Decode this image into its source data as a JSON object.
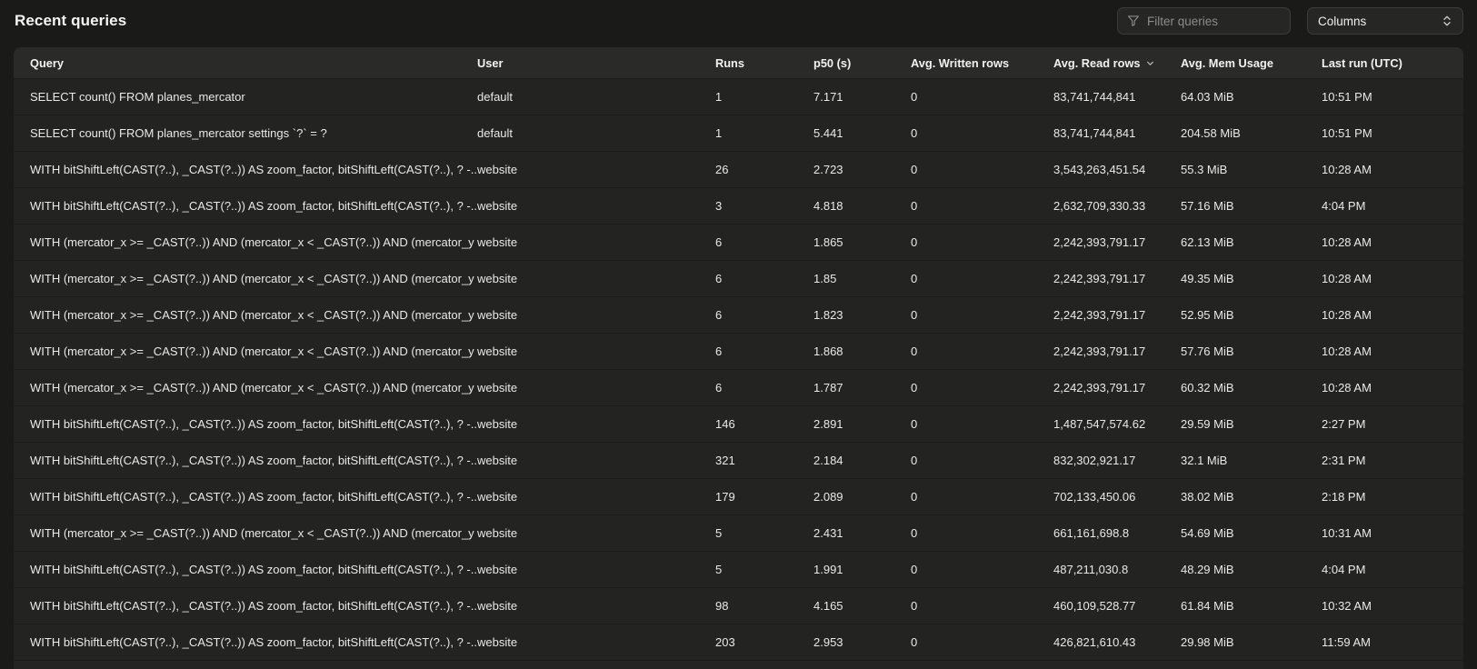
{
  "page": {
    "title": "Recent queries"
  },
  "toolbar": {
    "filter_placeholder": "Filter queries",
    "columns_label": "Columns",
    "filter_icon": "funnel-icon",
    "columns_icon": "up-down-chevrons-icon"
  },
  "colors": {
    "page_bg": "#1a1a18",
    "table_bg": "#232321",
    "header_bg": "#2a2a28",
    "divider": "#1b1b19",
    "text": "#e9e9e7",
    "muted_text": "#8b8b89"
  },
  "table": {
    "columns": [
      {
        "label": "Query",
        "sorted": false
      },
      {
        "label": "User",
        "sorted": false
      },
      {
        "label": "Runs",
        "sorted": false
      },
      {
        "label": "p50 (s)",
        "sorted": false
      },
      {
        "label": "Avg. Written rows",
        "sorted": false
      },
      {
        "label": "Avg. Read rows",
        "sorted": true
      },
      {
        "label": "Avg. Mem Usage",
        "sorted": false
      },
      {
        "label": "Last run (UTC)",
        "sorted": false
      }
    ],
    "rows": [
      {
        "query": "SELECT count() FROM planes_mercator",
        "user": "default",
        "runs": "1",
        "p50": "7.171",
        "avg_written_rows": "0",
        "avg_read_rows": "83,741,744,841",
        "avg_mem_usage": "64.03 MiB",
        "last_run": "10:51 PM"
      },
      {
        "query": "SELECT count() FROM planes_mercator settings `?` = ?",
        "user": "default",
        "runs": "1",
        "p50": "5.441",
        "avg_written_rows": "0",
        "avg_read_rows": "83,741,744,841",
        "avg_mem_usage": "204.58 MiB",
        "last_run": "10:51 PM"
      },
      {
        "query": "WITH bitShiftLeft(CAST(?..), _CAST(?..)) AS zoom_factor, bitShiftLeft(CAST(?..), ? -...",
        "user": "website",
        "runs": "26",
        "p50": "2.723",
        "avg_written_rows": "0",
        "avg_read_rows": "3,543,263,451.54",
        "avg_mem_usage": "55.3 MiB",
        "last_run": "10:28 AM"
      },
      {
        "query": "WITH bitShiftLeft(CAST(?..), _CAST(?..)) AS zoom_factor, bitShiftLeft(CAST(?..), ? -...",
        "user": "website",
        "runs": "3",
        "p50": "4.818",
        "avg_written_rows": "0",
        "avg_read_rows": "2,632,709,330.33",
        "avg_mem_usage": "57.16 MiB",
        "last_run": "4:04 PM"
      },
      {
        "query": "WITH (mercator_x >= _CAST(?..)) AND (mercator_x < _CAST(?..)) AND (mercator_y ...",
        "user": "website",
        "runs": "6",
        "p50": "1.865",
        "avg_written_rows": "0",
        "avg_read_rows": "2,242,393,791.17",
        "avg_mem_usage": "62.13 MiB",
        "last_run": "10:28 AM"
      },
      {
        "query": "WITH (mercator_x >= _CAST(?..)) AND (mercator_x < _CAST(?..)) AND (mercator_y ...",
        "user": "website",
        "runs": "6",
        "p50": "1.85",
        "avg_written_rows": "0",
        "avg_read_rows": "2,242,393,791.17",
        "avg_mem_usage": "49.35 MiB",
        "last_run": "10:28 AM"
      },
      {
        "query": "WITH (mercator_x >= _CAST(?..)) AND (mercator_x < _CAST(?..)) AND (mercator_y ...",
        "user": "website",
        "runs": "6",
        "p50": "1.823",
        "avg_written_rows": "0",
        "avg_read_rows": "2,242,393,791.17",
        "avg_mem_usage": "52.95 MiB",
        "last_run": "10:28 AM"
      },
      {
        "query": "WITH (mercator_x >= _CAST(?..)) AND (mercator_x < _CAST(?..)) AND (mercator_y ...",
        "user": "website",
        "runs": "6",
        "p50": "1.868",
        "avg_written_rows": "0",
        "avg_read_rows": "2,242,393,791.17",
        "avg_mem_usage": "57.76 MiB",
        "last_run": "10:28 AM"
      },
      {
        "query": "WITH (mercator_x >= _CAST(?..)) AND (mercator_x < _CAST(?..)) AND (mercator_y ...",
        "user": "website",
        "runs": "6",
        "p50": "1.787",
        "avg_written_rows": "0",
        "avg_read_rows": "2,242,393,791.17",
        "avg_mem_usage": "60.32 MiB",
        "last_run": "10:28 AM"
      },
      {
        "query": "WITH bitShiftLeft(CAST(?..), _CAST(?..)) AS zoom_factor, bitShiftLeft(CAST(?..), ? -...",
        "user": "website",
        "runs": "146",
        "p50": "2.891",
        "avg_written_rows": "0",
        "avg_read_rows": "1,487,547,574.62",
        "avg_mem_usage": "29.59 MiB",
        "last_run": "2:27 PM"
      },
      {
        "query": "WITH bitShiftLeft(CAST(?..), _CAST(?..)) AS zoom_factor, bitShiftLeft(CAST(?..), ? -...",
        "user": "website",
        "runs": "321",
        "p50": "2.184",
        "avg_written_rows": "0",
        "avg_read_rows": "832,302,921.17",
        "avg_mem_usage": "32.1 MiB",
        "last_run": "2:31 PM"
      },
      {
        "query": "WITH bitShiftLeft(CAST(?..), _CAST(?..)) AS zoom_factor, bitShiftLeft(CAST(?..), ? -...",
        "user": "website",
        "runs": "179",
        "p50": "2.089",
        "avg_written_rows": "0",
        "avg_read_rows": "702,133,450.06",
        "avg_mem_usage": "38.02 MiB",
        "last_run": "2:18 PM"
      },
      {
        "query": "WITH (mercator_x >= _CAST(?..)) AND (mercator_x < _CAST(?..)) AND (mercator_y ...",
        "user": "website",
        "runs": "5",
        "p50": "2.431",
        "avg_written_rows": "0",
        "avg_read_rows": "661,161,698.8",
        "avg_mem_usage": "54.69 MiB",
        "last_run": "10:31 AM"
      },
      {
        "query": "WITH bitShiftLeft(CAST(?..), _CAST(?..)) AS zoom_factor, bitShiftLeft(CAST(?..), ? -...",
        "user": "website",
        "runs": "5",
        "p50": "1.991",
        "avg_written_rows": "0",
        "avg_read_rows": "487,211,030.8",
        "avg_mem_usage": "48.29 MiB",
        "last_run": "4:04 PM"
      },
      {
        "query": "WITH bitShiftLeft(CAST(?..), _CAST(?..)) AS zoom_factor, bitShiftLeft(CAST(?..), ? -...",
        "user": "website",
        "runs": "98",
        "p50": "4.165",
        "avg_written_rows": "0",
        "avg_read_rows": "460,109,528.77",
        "avg_mem_usage": "61.84 MiB",
        "last_run": "10:32 AM"
      },
      {
        "query": "WITH bitShiftLeft(CAST(?..), _CAST(?..)) AS zoom_factor, bitShiftLeft(CAST(?..), ? -...",
        "user": "website",
        "runs": "203",
        "p50": "2.953",
        "avg_written_rows": "0",
        "avg_read_rows": "426,821,610.43",
        "avg_mem_usage": "29.98 MiB",
        "last_run": "11:59 AM"
      }
    ]
  }
}
